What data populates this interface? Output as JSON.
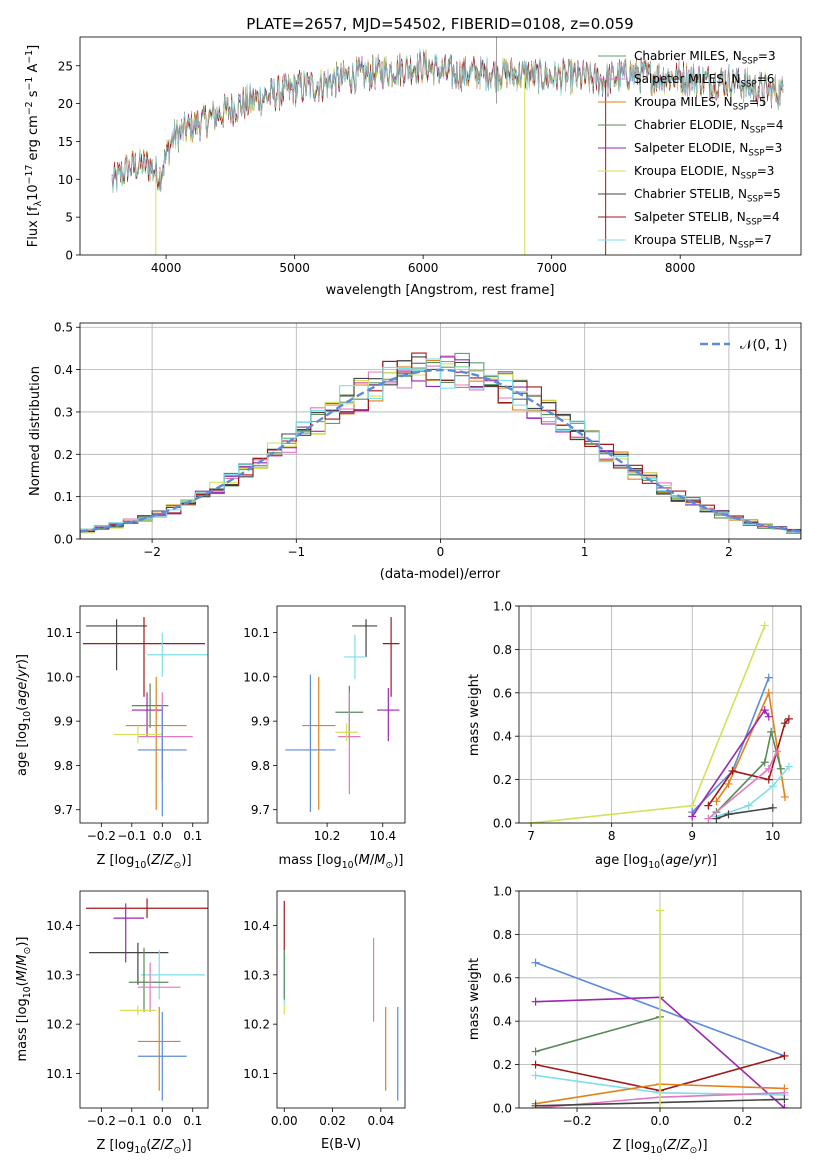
{
  "figure_title": "PLATE=2657, MJD=54502, FIBERID=0108, z=0.059",
  "chart_data": [
    {
      "type": "line",
      "panel": "spectrum",
      "title": "PLATE=2657, MJD=54502, FIBERID=0108, z=0.059",
      "xlabel": "wavelength [Angstrom, rest frame]",
      "ylabel": "Flux [f_λ 10^-17 erg cm^-2 s^-1 A^-1]",
      "xlim": [
        3330,
        8940
      ],
      "ylim": [
        0,
        28.8
      ],
      "xticks": [
        4000,
        5000,
        6000,
        7000,
        8000
      ],
      "yticks": [
        0,
        5,
        10,
        15,
        20,
        25
      ],
      "legend_position": "top-right",
      "continuum": {
        "x": [
          3580,
          3700,
          3850,
          3950,
          4050,
          4200,
          4400,
          4600,
          4800,
          5000,
          5200,
          5400,
          5600,
          5800,
          6000,
          6200,
          6400,
          6600,
          6800,
          7000,
          7200,
          7400,
          7600,
          7800,
          8000,
          8200,
          8400,
          8600,
          8800
        ],
        "y": [
          9.5,
          11.5,
          12.0,
          10.5,
          15.5,
          17.0,
          18.5,
          20.0,
          21.0,
          22.0,
          22.5,
          23.5,
          24.0,
          24.5,
          25.0,
          24.0,
          24.0,
          24.0,
          23.8,
          23.5,
          23.5,
          23.0,
          24.0,
          23.5,
          23.5,
          23.0,
          23.0,
          22.0,
          21.5
        ]
      },
      "series": [
        {
          "name": "Chabrier MILES, N_SSP=3",
          "color": "#5f9e6e"
        },
        {
          "name": "Salpeter MILES, N_SSP=6",
          "color": "#e377c2"
        },
        {
          "name": "Kroupa MILES, N_SSP=5",
          "color": "#e08119"
        },
        {
          "name": "Chabrier ELODIE, N_SSP=4",
          "color": "#5a8a5a"
        },
        {
          "name": "Salpeter ELODIE, N_SSP=3",
          "color": "#9b27b0"
        },
        {
          "name": "Kroupa ELODIE, N_SSP=3",
          "color": "#d4e157"
        },
        {
          "name": "Chabrier STELIB, N_SSP=5",
          "color": "#444444"
        },
        {
          "name": "Salpeter STELIB, N_SSP=4",
          "color": "#a01818"
        },
        {
          "name": "Kroupa STELIB, N_SSP=7",
          "color": "#80deea"
        }
      ]
    },
    {
      "type": "step",
      "panel": "residuals",
      "xlabel": "(data-model)/error",
      "ylabel": "Normed distribution",
      "xlim": [
        -2.5,
        2.5
      ],
      "ylim": [
        0,
        0.51
      ],
      "xticks": [
        -2,
        -1,
        0,
        1,
        2
      ],
      "yticks": [
        0.0,
        0.1,
        0.2,
        0.3,
        0.4,
        0.5
      ],
      "grid": true,
      "legend_position": "top-right",
      "legend": "N(0,1)",
      "reference_curve": {
        "type": "gaussian",
        "mean": 0,
        "sigma": 1,
        "color": "#5b8bd9"
      },
      "bin_width": 0.1,
      "histogram_colors": [
        "#5f9e6e",
        "#e377c2",
        "#e08119",
        "#5a8a5a",
        "#9b27b0",
        "#d4e157",
        "#444444",
        "#a01818",
        "#80deea"
      ]
    },
    {
      "type": "errorbar",
      "panel": "age_vs_Z",
      "xlabel": "Z [log10(Z/Z⊙)]",
      "ylabel": "age [log10(age/yr)]",
      "xlim": [
        -0.27,
        0.15
      ],
      "ylim": [
        9.67,
        10.16
      ],
      "xticks": [
        -0.2,
        -0.1,
        0.0,
        0.1
      ],
      "yticks": [
        9.7,
        9.8,
        9.9,
        10.0,
        10.1
      ],
      "points": [
        {
          "color": "#444444",
          "x": -0.15,
          "xerr": [
            0.1,
            0.1
          ],
          "y": 10.115,
          "yerr": [
            0.1,
            0.015
          ]
        },
        {
          "color": "#a01818",
          "x": -0.06,
          "xerr": [
            0.2,
            0.2
          ],
          "y": 10.075,
          "yerr": [
            0.12,
            0.06
          ]
        },
        {
          "color": "#80deea",
          "x": 0.0,
          "xerr": [
            0.05,
            0.15
          ],
          "y": 10.05,
          "yerr": [
            0.05,
            0.05
          ]
        },
        {
          "color": "#5a8a5a",
          "x": -0.04,
          "xerr": [
            0.06,
            0.06
          ],
          "y": 9.935,
          "yerr": [
            0.05,
            0.05
          ]
        },
        {
          "color": "#9b27b0",
          "x": -0.05,
          "xerr": [
            0.05,
            0.05
          ],
          "y": 9.925,
          "yerr": [
            0.06,
            0.04
          ]
        },
        {
          "color": "#e08119",
          "x": -0.02,
          "xerr": [
            0.1,
            0.1
          ],
          "y": 9.89,
          "yerr": [
            0.19,
            0.11
          ]
        },
        {
          "color": "#e377c2",
          "x": 0.0,
          "xerr": [
            0.08,
            0.1
          ],
          "y": 9.865,
          "yerr": [
            0.1,
            0.1
          ]
        },
        {
          "color": "#d4e157",
          "x": -0.08,
          "xerr": [
            0.08,
            0.08
          ],
          "y": 9.87,
          "yerr": [
            0.02,
            0.02
          ]
        },
        {
          "color": "#5b8bd9",
          "x": 0.0,
          "xerr": [
            0.08,
            0.08
          ],
          "y": 9.835,
          "yerr": [
            0.15,
            0.1
          ]
        }
      ]
    },
    {
      "type": "errorbar",
      "panel": "age_vs_mass",
      "xlabel": "mass [log10(M/M⊙)]",
      "ylabel": "",
      "xlim": [
        10.02,
        10.48
      ],
      "ylim": [
        9.67,
        10.16
      ],
      "xticks": [
        10.2,
        10.4
      ],
      "yticks": [
        9.7,
        9.8,
        9.9,
        10.0,
        10.1
      ],
      "points": [
        {
          "color": "#444444",
          "x": 10.34,
          "xerr": [
            0.05,
            0.04
          ],
          "y": 10.115,
          "yerr": [
            0.07,
            0.015
          ]
        },
        {
          "color": "#a01818",
          "x": 10.43,
          "xerr": [
            0.03,
            0.03
          ],
          "y": 10.075,
          "yerr": [
            0.12,
            0.06
          ]
        },
        {
          "color": "#80deea",
          "x": 10.3,
          "xerr": [
            0.04,
            0.04
          ],
          "y": 10.045,
          "yerr": [
            0.05,
            0.05
          ]
        },
        {
          "color": "#5a8a5a",
          "x": 10.28,
          "xerr": [
            0.05,
            0.05
          ],
          "y": 9.92,
          "yerr": [
            0.06,
            0.06
          ]
        },
        {
          "color": "#9b27b0",
          "x": 10.42,
          "xerr": [
            0.04,
            0.04
          ],
          "y": 9.925,
          "yerr": [
            0.07,
            0.05
          ]
        },
        {
          "color": "#e08119",
          "x": 10.17,
          "xerr": [
            0.06,
            0.06
          ],
          "y": 9.89,
          "yerr": [
            0.19,
            0.11
          ]
        },
        {
          "color": "#e377c2",
          "x": 10.28,
          "xerr": [
            0.04,
            0.04
          ],
          "y": 9.865,
          "yerr": [
            0.13,
            0.1
          ]
        },
        {
          "color": "#d4e157",
          "x": 10.27,
          "xerr": [
            0.04,
            0.04
          ],
          "y": 9.875,
          "yerr": [
            0.02,
            0.02
          ]
        },
        {
          "color": "#5b8bd9",
          "x": 10.14,
          "xerr": [
            0.09,
            0.09
          ],
          "y": 9.835,
          "yerr": [
            0.14,
            0.17
          ]
        }
      ]
    },
    {
      "type": "line",
      "panel": "mass_weight_vs_age",
      "xlabel": "age [log10(age/yr)]",
      "ylabel": "mass weight",
      "xlim": [
        6.85,
        10.35
      ],
      "ylim": [
        0,
        1.0
      ],
      "xticks": [
        7,
        8,
        9,
        10
      ],
      "yticks": [
        0.0,
        0.2,
        0.4,
        0.6,
        0.8,
        1.0
      ],
      "grid": true,
      "series": [
        {
          "color": "#d4e157",
          "x": [
            7.0,
            9.0,
            9.9
          ],
          "y": [
            0.0,
            0.08,
            0.91
          ]
        },
        {
          "color": "#5b8bd9",
          "x": [
            9.0,
            9.5,
            9.95
          ],
          "y": [
            0.05,
            0.24,
            0.67
          ]
        },
        {
          "color": "#e08119",
          "x": [
            9.3,
            9.45,
            9.95,
            10.15
          ],
          "y": [
            0.1,
            0.18,
            0.6,
            0.12
          ]
        },
        {
          "color": "#9b27b0",
          "x": [
            9.0,
            9.9,
            9.95
          ],
          "y": [
            0.03,
            0.52,
            0.49
          ]
        },
        {
          "color": "#5a8a5a",
          "x": [
            9.3,
            9.9,
            9.98,
            10.1
          ],
          "y": [
            0.05,
            0.28,
            0.42,
            0.25
          ]
        },
        {
          "color": "#a01818",
          "x": [
            9.2,
            9.5,
            9.95,
            10.15,
            10.2
          ],
          "y": [
            0.08,
            0.24,
            0.2,
            0.46,
            0.48
          ]
        },
        {
          "color": "#80deea",
          "x": [
            9.3,
            9.7,
            10.0,
            10.2
          ],
          "y": [
            0.03,
            0.08,
            0.17,
            0.26
          ]
        },
        {
          "color": "#e377c2",
          "x": [
            9.2,
            9.95,
            10.05
          ],
          "y": [
            0.02,
            0.25,
            0.33
          ]
        },
        {
          "color": "#444444",
          "x": [
            9.3,
            9.45,
            10.0
          ],
          "y": [
            0.02,
            0.04,
            0.07
          ]
        }
      ]
    },
    {
      "type": "errorbar",
      "panel": "mass_vs_Z",
      "xlabel": "Z [log10(Z/Z⊙)]",
      "ylabel": "mass [log10(M/M⊙)]",
      "xlim": [
        -0.27,
        0.15
      ],
      "ylim": [
        10.03,
        10.47
      ],
      "xticks": [
        -0.2,
        -0.1,
        0.0,
        0.1
      ],
      "yticks": [
        10.1,
        10.2,
        10.3,
        10.4
      ],
      "points": [
        {
          "color": "#a01818",
          "x": -0.05,
          "xerr": [
            0.2,
            0.2
          ],
          "y": 10.435,
          "yerr": [
            0.02,
            0.02
          ]
        },
        {
          "color": "#9b27b0",
          "x": -0.12,
          "xerr": [
            0.04,
            0.06
          ],
          "y": 10.415,
          "yerr": [
            0.09,
            0.03
          ]
        },
        {
          "color": "#444444",
          "x": -0.08,
          "xerr": [
            0.16,
            0.1
          ],
          "y": 10.345,
          "yerr": [
            0.065,
            0.02
          ]
        },
        {
          "color": "#80deea",
          "x": -0.01,
          "xerr": [
            0.06,
            0.15
          ],
          "y": 10.3,
          "yerr": [
            0.05,
            0.05
          ]
        },
        {
          "color": "#5a8a5a",
          "x": -0.06,
          "xerr": [
            0.05,
            0.08
          ],
          "y": 10.285,
          "yerr": [
            0.06,
            0.07
          ]
        },
        {
          "color": "#e377c2",
          "x": -0.04,
          "xerr": [
            0.04,
            0.1
          ],
          "y": 10.275,
          "yerr": [
            0.05,
            0.05
          ]
        },
        {
          "color": "#d4e157",
          "x": -0.08,
          "xerr": [
            0.06,
            0.06
          ],
          "y": 10.228,
          "yerr": [
            0.01,
            0.01
          ]
        },
        {
          "color": "#e08119",
          "x": -0.01,
          "xerr": [
            0.07,
            0.07
          ],
          "y": 10.165,
          "yerr": [
            0.1,
            0.07
          ]
        },
        {
          "color": "#5b8bd9",
          "x": 0.0,
          "xerr": [
            0.08,
            0.08
          ],
          "y": 10.135,
          "yerr": [
            0.09,
            0.09
          ]
        }
      ]
    },
    {
      "type": "errorbar",
      "panel": "mass_vs_EBV",
      "xlabel": "E(B-V)",
      "ylabel": "",
      "xlim": [
        -0.003,
        0.05
      ],
      "ylim": [
        10.03,
        10.47
      ],
      "xticks": [
        0.0,
        0.02,
        0.04
      ],
      "yticks": [
        10.1,
        10.2,
        10.3,
        10.4
      ],
      "points": [
        {
          "color": "#a01818",
          "x": 0.0,
          "xerr": [
            0,
            0
          ],
          "y": 10.4,
          "yerr": [
            0.05,
            0.05
          ]
        },
        {
          "color": "#80deea",
          "x": 0.0,
          "xerr": [
            0,
            0
          ],
          "y": 10.3,
          "yerr": [
            0.06,
            0.05
          ]
        },
        {
          "color": "#5a8a5a",
          "x": 0.0,
          "xerr": [
            0,
            0
          ],
          "y": 10.3,
          "yerr": [
            0.05,
            0.05
          ]
        },
        {
          "color": "#d4e157",
          "x": 0.0,
          "xerr": [
            0,
            0
          ],
          "y": 10.23,
          "yerr": [
            0.01,
            0.01
          ]
        },
        {
          "color": "#e377c2",
          "x": 0.037,
          "xerr": [
            0,
            0
          ],
          "y": 10.29,
          "yerr": [
            0.085,
            0.085
          ]
        },
        {
          "color": "#e08119",
          "x": 0.042,
          "xerr": [
            0,
            0
          ],
          "y": 10.15,
          "yerr": [
            0.085,
            0.085
          ]
        },
        {
          "color": "#5b8bd9",
          "x": 0.047,
          "xerr": [
            0,
            0
          ],
          "y": 10.14,
          "yerr": [
            0.095,
            0.095
          ]
        }
      ]
    },
    {
      "type": "line",
      "panel": "mass_weight_vs_Z",
      "xlabel": "Z [log10(Z/Z⊙)]",
      "ylabel": "mass weight",
      "xlim": [
        -0.34,
        0.34
      ],
      "ylim": [
        0,
        1.0
      ],
      "xticks": [
        -0.2,
        0.0,
        0.2
      ],
      "yticks": [
        0.0,
        0.2,
        0.4,
        0.6,
        0.8,
        1.0
      ],
      "grid": true,
      "series": [
        {
          "color": "#5b8bd9",
          "x": [
            -0.3,
            0.3
          ],
          "y": [
            0.67,
            0.24
          ]
        },
        {
          "color": "#9b27b0",
          "x": [
            -0.3,
            0.0,
            0.3
          ],
          "y": [
            0.49,
            0.51,
            0.0
          ]
        },
        {
          "color": "#5a8a5a",
          "x": [
            -0.3,
            0.0
          ],
          "y": [
            0.26,
            0.42
          ]
        },
        {
          "color": "#a01818",
          "x": [
            -0.3,
            0.0,
            0.3
          ],
          "y": [
            0.2,
            0.08,
            0.24
          ]
        },
        {
          "color": "#80deea",
          "x": [
            -0.3,
            0.0,
            0.3
          ],
          "y": [
            0.15,
            0.07,
            0.06
          ]
        },
        {
          "color": "#e08119",
          "x": [
            -0.3,
            0.0,
            0.3
          ],
          "y": [
            0.02,
            0.11,
            0.09
          ]
        },
        {
          "color": "#e377c2",
          "x": [
            -0.3,
            0.0,
            0.3
          ],
          "y": [
            0.0,
            0.05,
            0.07
          ]
        },
        {
          "color": "#444444",
          "x": [
            -0.3,
            0.3
          ],
          "y": [
            0.01,
            0.04
          ]
        },
        {
          "color": "#d4e157",
          "x": [
            0.0,
            0.0
          ],
          "y": [
            0.0,
            0.91
          ]
        }
      ]
    }
  ]
}
